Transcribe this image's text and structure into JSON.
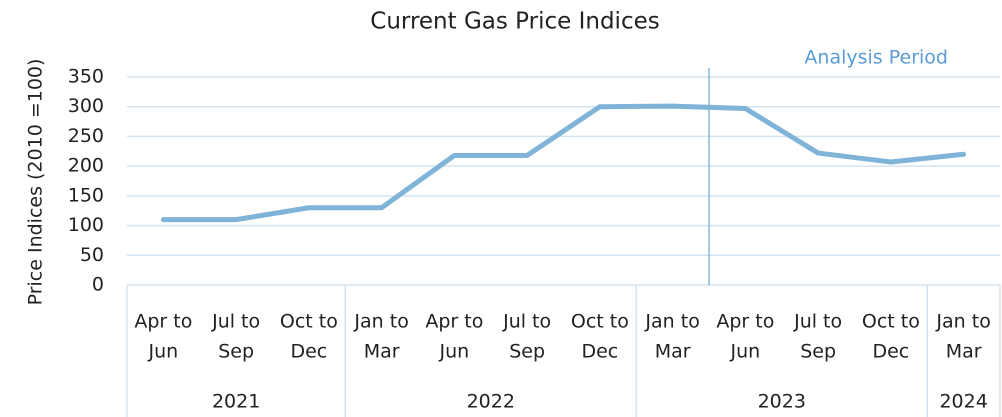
{
  "chart_data": {
    "type": "line",
    "title": "Current Gas Price Indices",
    "y_label": "Price Indices (2010 =100)",
    "groups": [
      {
        "name": "2021",
        "categories": [
          [
            "Apr to",
            "Jun"
          ],
          [
            "Jul to",
            "Sep"
          ],
          [
            "Oct to",
            "Dec"
          ]
        ]
      },
      {
        "name": "2022",
        "categories": [
          [
            "Jan to",
            "Mar"
          ],
          [
            "Apr to",
            "Jun"
          ],
          [
            "Jul to",
            "Sep"
          ],
          [
            "Oct to",
            "Dec"
          ]
        ]
      },
      {
        "name": "2023",
        "categories": [
          [
            "Jan to",
            "Mar"
          ],
          [
            "Apr to",
            "Jun"
          ],
          [
            "Jul to",
            "Sep"
          ],
          [
            "Oct to",
            "Dec"
          ]
        ]
      },
      {
        "name": "2024",
        "categories": [
          [
            "Jan to",
            "Mar"
          ]
        ]
      }
    ],
    "values": [
      110,
      110,
      130,
      130,
      218,
      218,
      300,
      301,
      297,
      222,
      207,
      220
    ],
    "color": "#7fb3d8",
    "annotation": "Analysis Period",
    "ylim": [
      0,
      350
    ],
    "yticks": [
      0,
      50,
      100,
      150,
      200,
      250,
      300,
      350
    ],
    "grid": true
  }
}
